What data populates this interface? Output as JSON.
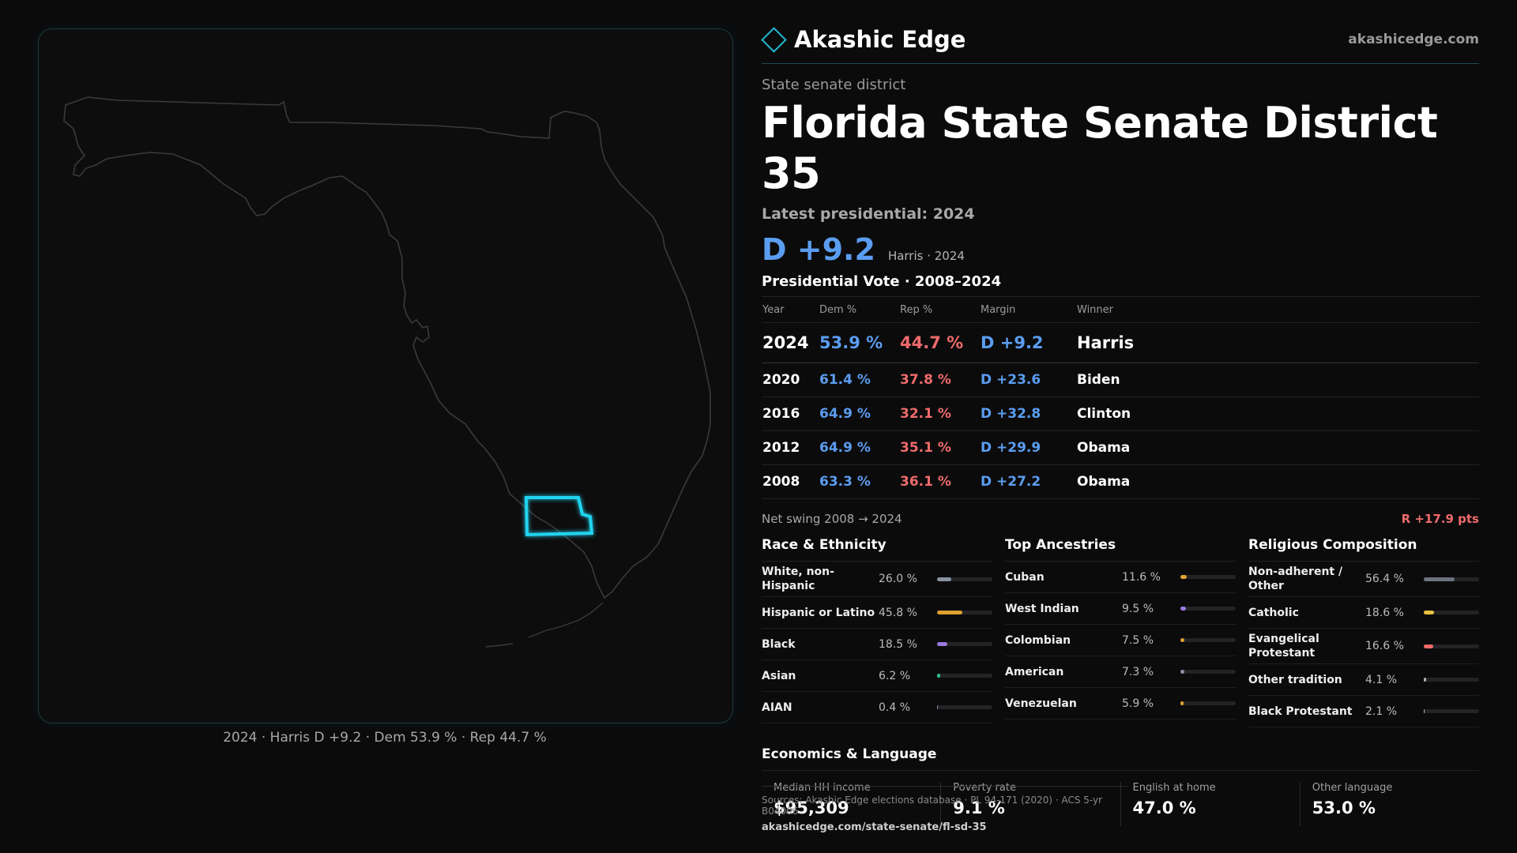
{
  "map": {
    "caption": "2024 · Harris D +9.2 · Dem 53.9 % · Rep 44.7 %",
    "district_color": "#22d3ee",
    "outline_color": "#3a3a3a"
  },
  "header": {
    "brand": "Akashic Edge",
    "url": "akashicedge.com"
  },
  "district": {
    "kicker": "State senate district",
    "title": "Florida State Senate District 35",
    "latest_label": "Latest presidential: 2024",
    "margin": "D +9.2",
    "margin_sub": "Harris · 2024"
  },
  "presidential": {
    "title": "Presidential Vote · 2008–2024",
    "headers": [
      "Year",
      "Dem %",
      "Rep %",
      "Margin",
      "Winner"
    ],
    "rows": [
      {
        "year": "2024",
        "dem": "53.9 %",
        "rep": "44.7 %",
        "margin": "D +9.2",
        "winner": "Harris"
      },
      {
        "year": "2020",
        "dem": "61.4 %",
        "rep": "37.8 %",
        "margin": "D +23.6",
        "winner": "Biden"
      },
      {
        "year": "2016",
        "dem": "64.9 %",
        "rep": "32.1 %",
        "margin": "D +32.8",
        "winner": "Clinton"
      },
      {
        "year": "2012",
        "dem": "64.9 %",
        "rep": "35.1 %",
        "margin": "D +29.9",
        "winner": "Obama"
      },
      {
        "year": "2008",
        "dem": "63.3 %",
        "rep": "36.1 %",
        "margin": "D +27.2",
        "winner": "Obama"
      }
    ],
    "swing_label": "Net swing 2008 → 2024",
    "swing_value": "R +17.9 pts"
  },
  "race": {
    "title": "Race & Ethnicity",
    "items": [
      {
        "label": "White, non-Hispanic",
        "pct": "26.0 %",
        "share": 0.26,
        "color": "#8a93a3"
      },
      {
        "label": "Hispanic or Latino",
        "pct": "45.8 %",
        "share": 0.458,
        "color": "#e0a030"
      },
      {
        "label": "Black",
        "pct": "18.5 %",
        "share": 0.185,
        "color": "#9a7ae0"
      },
      {
        "label": "Asian",
        "pct": "6.2 %",
        "share": 0.062,
        "color": "#2fbf8a"
      },
      {
        "label": "AIAN",
        "pct": "0.4 %",
        "share": 0.004,
        "color": "#8a93a3"
      }
    ]
  },
  "ancestry": {
    "title": "Top Ancestries",
    "items": [
      {
        "label": "Cuban",
        "pct": "11.6 %",
        "share": 0.116,
        "color": "#e0a030"
      },
      {
        "label": "West Indian",
        "pct": "9.5 %",
        "share": 0.095,
        "color": "#9a7ae0"
      },
      {
        "label": "Colombian",
        "pct": "7.5 %",
        "share": 0.075,
        "color": "#e0a030"
      },
      {
        "label": "American",
        "pct": "7.3 %",
        "share": 0.073,
        "color": "#8a93a3"
      },
      {
        "label": "Venezuelan",
        "pct": "5.9 %",
        "share": 0.059,
        "color": "#e0a030"
      }
    ]
  },
  "religion": {
    "title": "Religious Composition",
    "items": [
      {
        "label": "Non-adherent / Other",
        "pct": "56.4 %",
        "share": 0.564,
        "color": "#6b7280"
      },
      {
        "label": "Catholic",
        "pct": "18.6 %",
        "share": 0.186,
        "color": "#e8c040"
      },
      {
        "label": "Evangelical Protestant",
        "pct": "16.6 %",
        "share": 0.166,
        "color": "#ef6b6b"
      },
      {
        "label": "Other tradition",
        "pct": "4.1 %",
        "share": 0.041,
        "color": "#b0b0b0"
      },
      {
        "label": "Black Protestant",
        "pct": "2.1 %",
        "share": 0.021,
        "color": "#b0b0b0"
      }
    ]
  },
  "economics": {
    "title": "Economics & Language",
    "items": [
      {
        "label": "Median HH income",
        "value": "$95,309"
      },
      {
        "label": "Poverty rate",
        "value": "9.1 %"
      },
      {
        "label": "English at home",
        "value": "47.0 %"
      },
      {
        "label": "Other language",
        "value": "53.0 %"
      }
    ]
  },
  "sources": {
    "text": "Sources: Akashic Edge elections database · PL 94-171 (2020) · ACS 5-yr B04006",
    "link": "akashicedge.com/state-senate/fl-sd-35"
  }
}
